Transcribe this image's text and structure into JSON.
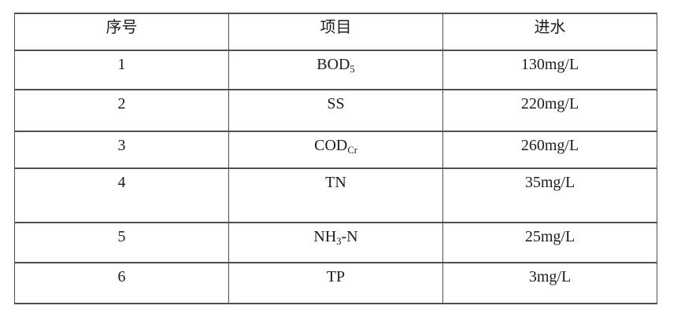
{
  "table": {
    "columns": [
      {
        "label": "序号"
      },
      {
        "label": "项目"
      },
      {
        "label": "进水"
      }
    ],
    "rows": [
      {
        "index": "1",
        "item": {
          "pre": "BOD",
          "sub": "5",
          "post": ""
        },
        "influent": "130mg/L"
      },
      {
        "index": "2",
        "item": {
          "pre": "SS",
          "sub": "",
          "post": ""
        },
        "influent": "220mg/L"
      },
      {
        "index": "3",
        "item": {
          "pre": "COD",
          "sub": "Cr",
          "post": ""
        },
        "influent": "260mg/L"
      },
      {
        "index": "4",
        "item": {
          "pre": "TN",
          "sub": "",
          "post": ""
        },
        "influent": "35mg/L"
      },
      {
        "index": "5",
        "item": {
          "pre": "NH",
          "sub": "3",
          "post": "-N"
        },
        "influent": "25mg/L"
      },
      {
        "index": "6",
        "item": {
          "pre": "TP",
          "sub": "",
          "post": ""
        },
        "influent": "3mg/L"
      }
    ],
    "border_color": "#4f4f4f"
  }
}
